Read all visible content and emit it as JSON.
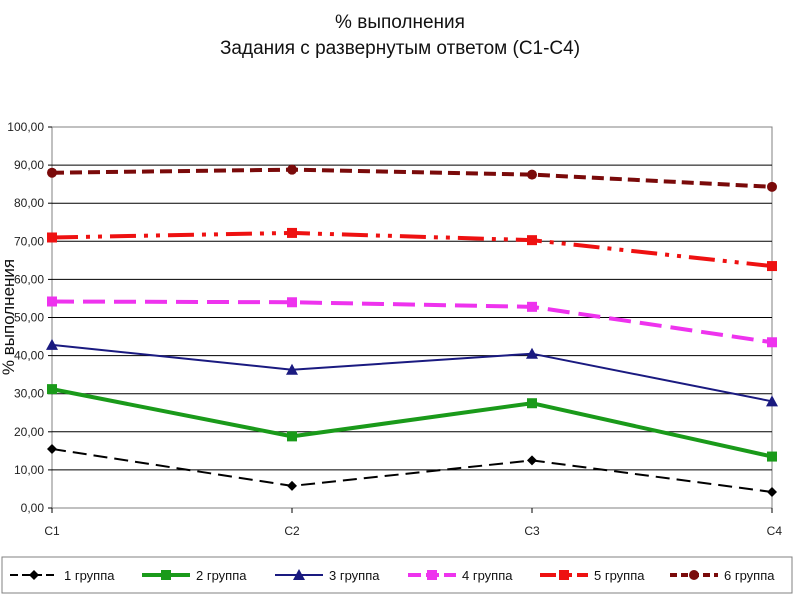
{
  "chart_data": {
    "type": "line",
    "title": "% выполнения",
    "subtitle": "Задания с развернутым ответом (С1-С4)",
    "ylabel": "% выполнения",
    "xlabel": "",
    "categories": [
      "С1",
      "С2",
      "С3",
      "С4"
    ],
    "ylim": [
      0,
      100
    ],
    "yticks": [
      "0,00",
      "10,00",
      "20,00",
      "30,00",
      "40,00",
      "50,00",
      "60,00",
      "70,00",
      "80,00",
      "90,00",
      "100,00"
    ],
    "grid": true,
    "legend": "bottom",
    "series": [
      {
        "name": "1 группа",
        "values": [
          15.5,
          5.8,
          12.5,
          4.2
        ],
        "color": "#000000",
        "dash": "14,7",
        "marker": "diamond",
        "width": 2
      },
      {
        "name": "2 группа",
        "values": [
          31.2,
          18.8,
          27.5,
          13.5
        ],
        "color": "#1a9a1a",
        "dash": "",
        "marker": "square",
        "width": 4
      },
      {
        "name": "3 группа",
        "values": [
          42.8,
          36.3,
          40.5,
          28.0
        ],
        "color": "#1a1a80",
        "dash": "",
        "marker": "triangle",
        "width": 2
      },
      {
        "name": "4 группа",
        "values": [
          54.2,
          54.0,
          52.8,
          43.5
        ],
        "color": "#ee33ee",
        "dash": "22,9",
        "marker": "square",
        "width": 4
      },
      {
        "name": "5 группа",
        "values": [
          71.0,
          72.2,
          70.3,
          63.5
        ],
        "color": "#ee1111",
        "dash": "26,8,4,8,4,8",
        "marker": "square",
        "width": 4
      },
      {
        "name": "6 группа",
        "values": [
          88.0,
          88.8,
          87.5,
          84.3
        ],
        "color": "#7a0a0a",
        "dash": "12,6",
        "marker": "circle",
        "width": 4
      }
    ]
  }
}
